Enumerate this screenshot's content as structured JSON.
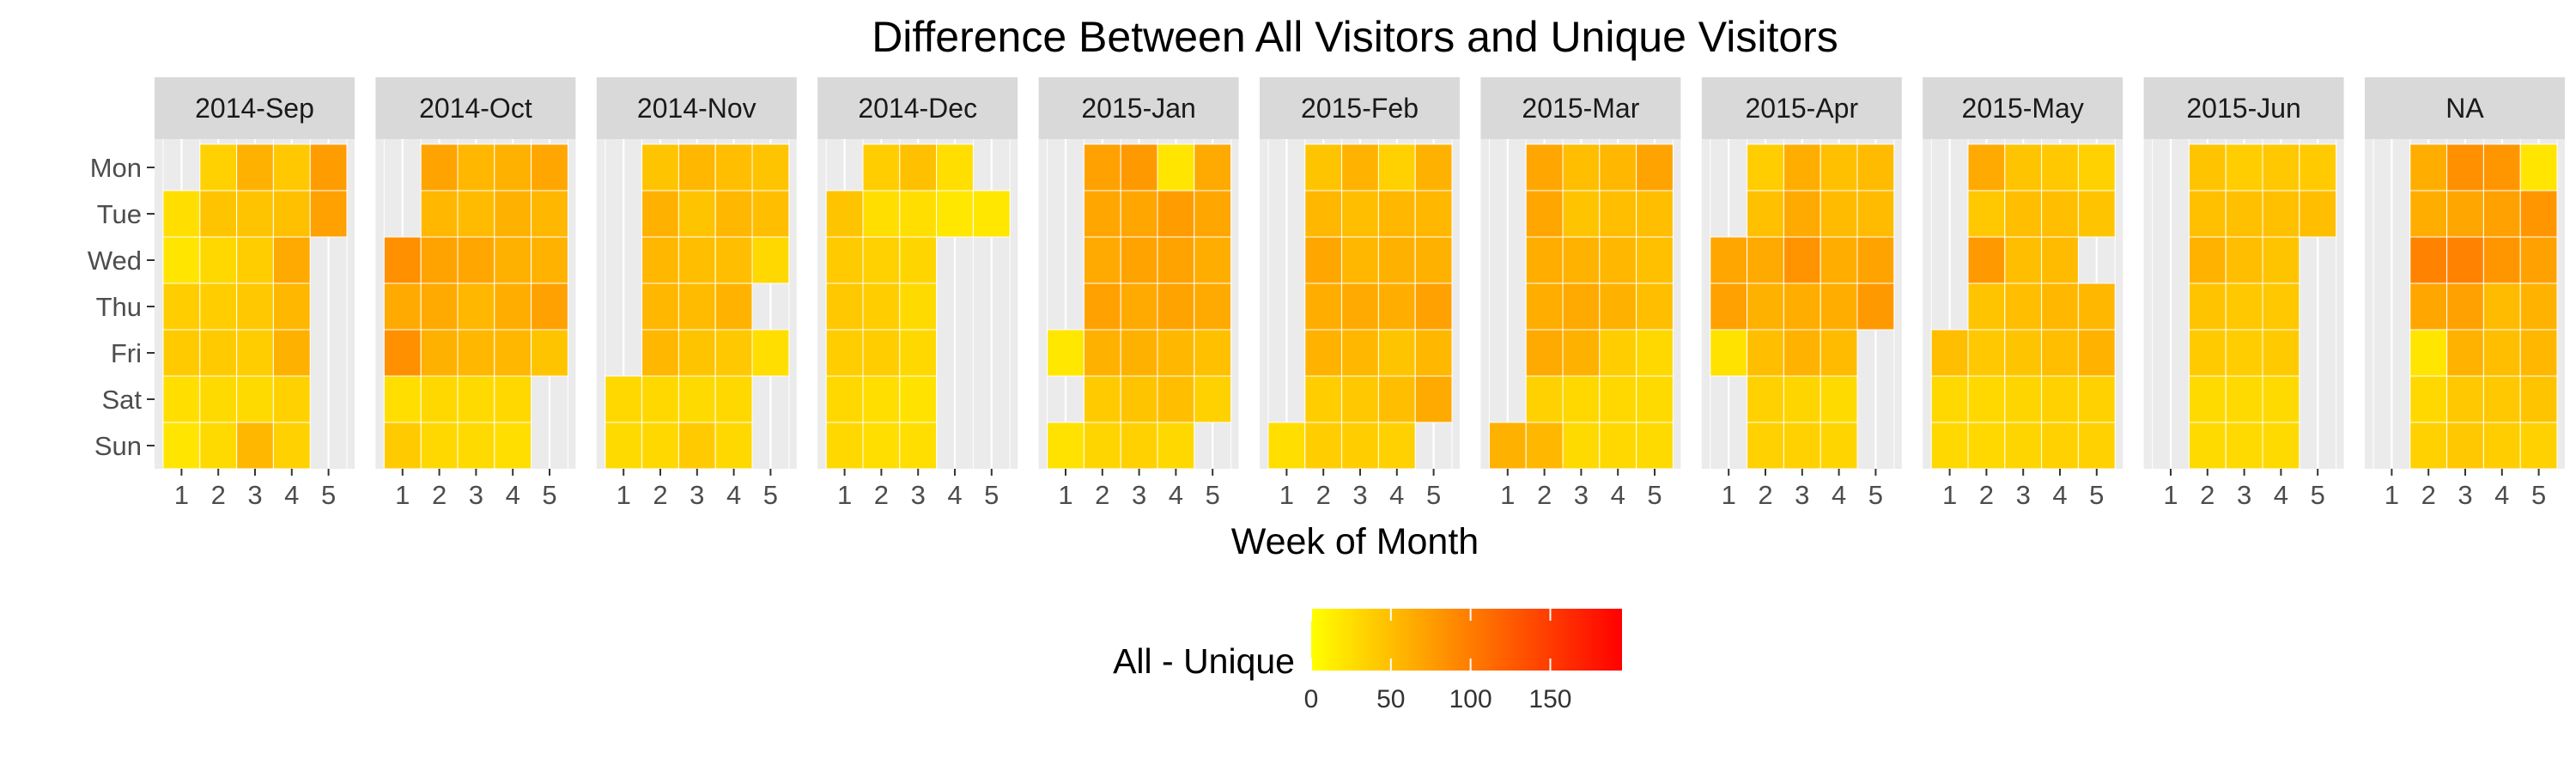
{
  "chart_data": {
    "type": "heatmap",
    "title": "Difference Between All Visitors and Unique Visitors",
    "xlabel": "Week of Month",
    "ylabel": "",
    "x_ticks": [
      "1",
      "2",
      "3",
      "4",
      "5"
    ],
    "y_categories": [
      "Mon",
      "Tue",
      "Wed",
      "Thu",
      "Fri",
      "Sat",
      "Sun"
    ],
    "legend": {
      "title": "All - Unique",
      "ticks": [
        0,
        50,
        100,
        150
      ],
      "range": [
        0,
        195
      ],
      "colors": [
        "#ffff00",
        "#ff0000"
      ],
      "placement": "bottom"
    },
    "grid": true,
    "panels": [
      {
        "label": "2014-Sep",
        "cells": [
          [
            null,
            35,
            60,
            42,
            75
          ],
          [
            25,
            45,
            45,
            48,
            72
          ],
          [
            20,
            30,
            38,
            65,
            null
          ],
          [
            38,
            38,
            42,
            55,
            null
          ],
          [
            40,
            40,
            38,
            60,
            null
          ],
          [
            25,
            28,
            28,
            35,
            null
          ],
          [
            20,
            28,
            55,
            35,
            null
          ]
        ]
      },
      {
        "label": "2014-Oct",
        "cells": [
          [
            null,
            70,
            55,
            60,
            68
          ],
          [
            null,
            55,
            52,
            60,
            55
          ],
          [
            85,
            70,
            68,
            60,
            58
          ],
          [
            65,
            65,
            55,
            62,
            72
          ],
          [
            85,
            60,
            55,
            55,
            45
          ],
          [
            25,
            30,
            28,
            30,
            null
          ],
          [
            40,
            30,
            28,
            25,
            null
          ]
        ]
      },
      {
        "label": "2014-Nov",
        "cells": [
          [
            null,
            45,
            55,
            50,
            45
          ],
          [
            null,
            60,
            45,
            55,
            50
          ],
          [
            null,
            55,
            50,
            50,
            30
          ],
          [
            null,
            55,
            52,
            58,
            null
          ],
          [
            null,
            55,
            45,
            42,
            25
          ],
          [
            30,
            30,
            28,
            30,
            null
          ],
          [
            28,
            30,
            40,
            30,
            null
          ]
        ]
      },
      {
        "label": "2014-Dec",
        "cells": [
          [
            null,
            38,
            48,
            25,
            null
          ],
          [
            45,
            25,
            25,
            18,
            18
          ],
          [
            40,
            35,
            32,
            null,
            null
          ],
          [
            42,
            38,
            28,
            null,
            null
          ],
          [
            38,
            38,
            30,
            null,
            null
          ],
          [
            30,
            25,
            22,
            null,
            null
          ],
          [
            30,
            25,
            25,
            null,
            null
          ]
        ]
      },
      {
        "label": "2015-Jan",
        "cells": [
          [
            null,
            72,
            78,
            20,
            65
          ],
          [
            null,
            68,
            68,
            75,
            68
          ],
          [
            null,
            65,
            70,
            70,
            62
          ],
          [
            null,
            72,
            65,
            70,
            65
          ],
          [
            18,
            60,
            60,
            55,
            48
          ],
          [
            null,
            40,
            45,
            50,
            35
          ],
          [
            22,
            32,
            35,
            30,
            null
          ]
        ]
      },
      {
        "label": "2015-Feb",
        "cells": [
          [
            null,
            45,
            58,
            35,
            60
          ],
          [
            null,
            55,
            50,
            55,
            55
          ],
          [
            null,
            68,
            55,
            60,
            60
          ],
          [
            null,
            62,
            65,
            62,
            72
          ],
          [
            null,
            58,
            55,
            45,
            55
          ],
          [
            null,
            38,
            42,
            50,
            65
          ],
          [
            25,
            38,
            38,
            35,
            null
          ]
        ]
      },
      {
        "label": "2015-Mar",
        "cells": [
          [
            null,
            68,
            50,
            55,
            70
          ],
          [
            null,
            68,
            45,
            50,
            50
          ],
          [
            null,
            62,
            58,
            55,
            48
          ],
          [
            null,
            62,
            65,
            60,
            50
          ],
          [
            null,
            65,
            60,
            38,
            30
          ],
          [
            null,
            35,
            30,
            30,
            28
          ],
          [
            60,
            55,
            28,
            30,
            28
          ]
        ]
      },
      {
        "label": "2015-Apr",
        "cells": [
          [
            null,
            38,
            62,
            48,
            52
          ],
          [
            null,
            48,
            65,
            52,
            52
          ],
          [
            68,
            65,
            82,
            62,
            70
          ],
          [
            72,
            60,
            62,
            62,
            78
          ],
          [
            22,
            50,
            58,
            52,
            null
          ],
          [
            null,
            35,
            32,
            28,
            null
          ],
          [
            null,
            35,
            35,
            32,
            null
          ]
        ]
      },
      {
        "label": "2015-May",
        "cells": [
          [
            null,
            65,
            45,
            42,
            35
          ],
          [
            null,
            42,
            50,
            50,
            45
          ],
          [
            null,
            78,
            50,
            52,
            null
          ],
          [
            null,
            45,
            50,
            55,
            55
          ],
          [
            50,
            42,
            45,
            50,
            58
          ],
          [
            30,
            30,
            32,
            35,
            35
          ],
          [
            30,
            30,
            32,
            35,
            35
          ]
        ]
      },
      {
        "label": "2015-Jun",
        "cells": [
          [
            null,
            45,
            38,
            42,
            40
          ],
          [
            null,
            48,
            48,
            48,
            50
          ],
          [
            null,
            58,
            50,
            45,
            null
          ],
          [
            null,
            45,
            42,
            42,
            null
          ],
          [
            null,
            40,
            38,
            40,
            null
          ],
          [
            null,
            28,
            28,
            28,
            null
          ],
          [
            null,
            28,
            28,
            28,
            null
          ]
        ]
      },
      {
        "label": "NA",
        "cells": [
          [
            null,
            62,
            85,
            80,
            20
          ],
          [
            null,
            62,
            68,
            72,
            80
          ],
          [
            null,
            95,
            95,
            80,
            72
          ],
          [
            null,
            68,
            72,
            52,
            58
          ],
          [
            null,
            20,
            58,
            50,
            55
          ],
          [
            null,
            30,
            42,
            42,
            45
          ],
          [
            null,
            35,
            42,
            38,
            35
          ]
        ]
      }
    ]
  }
}
